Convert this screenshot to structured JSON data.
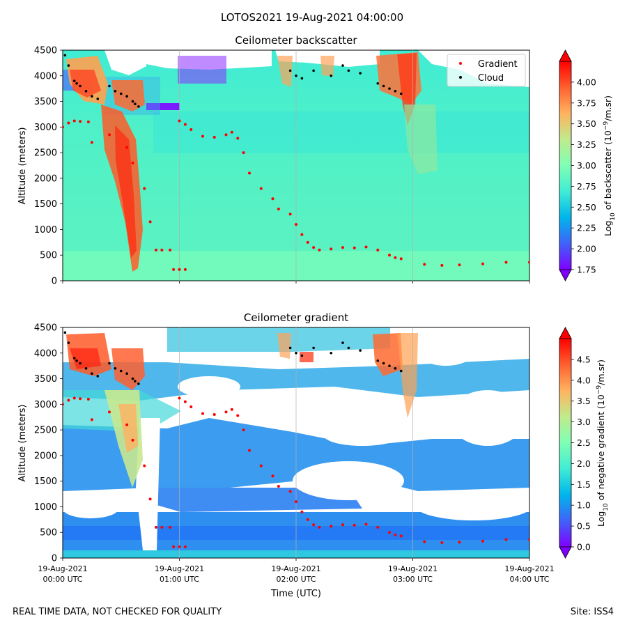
{
  "figure": {
    "suptitle": "LOTOS2021 19-Aug-2021 04:00:00",
    "footer_left": "REAL TIME DATA, NOT CHECKED FOR QUALITY",
    "footer_right": "Site: ISS4"
  },
  "colormap": [
    "#8000ff",
    "#4062fa",
    "#00b5eb",
    "#40ecd4",
    "#80ffb4",
    "#c0eb8d",
    "#ffb360",
    "#ff6030",
    "#ff0000"
  ],
  "chart_data": [
    {
      "type": "heatmap",
      "title": "Ceilometer backscatter",
      "ylabel": "Altitude (meters)",
      "xlim": [
        "19-Aug-2021 00:00 UTC",
        "19-Aug-2021 04:00 UTC"
      ],
      "ylim": [
        0,
        4500
      ],
      "y_ticks": [
        "0",
        "500",
        "1000",
        "1500",
        "2000",
        "2500",
        "3000",
        "3500",
        "4000",
        "4500"
      ],
      "grid": "vertical lines at each hour",
      "legend": {
        "placement": "top-right",
        "entries": [
          {
            "label": "Gradient",
            "color": "#ff0000"
          },
          {
            "label": "Cloud",
            "color": "#000000"
          }
        ]
      },
      "colorbar": {
        "label": "Log10 of backscatter (10^-9/m.sr)",
        "range": [
          1.75,
          4.25
        ],
        "extend": "both",
        "ticks": [
          "1.75",
          "2.00",
          "2.25",
          "2.50",
          "2.75",
          "3.00",
          "3.25",
          "3.50",
          "3.75",
          "4.00"
        ]
      },
      "gradient_points": [
        [
          0,
          3000
        ],
        [
          0.05,
          3080
        ],
        [
          0.1,
          3120
        ],
        [
          0.15,
          3110
        ],
        [
          0.22,
          3100
        ],
        [
          0.25,
          2700
        ],
        [
          0.4,
          2850
        ],
        [
          0.55,
          2600
        ],
        [
          0.6,
          2300
        ],
        [
          0.7,
          1800
        ],
        [
          0.75,
          1150
        ],
        [
          0.8,
          600
        ],
        [
          0.85,
          600
        ],
        [
          0.92,
          600
        ],
        [
          0.95,
          220
        ],
        [
          1.0,
          220
        ],
        [
          1.05,
          220
        ],
        [
          1.0,
          3120
        ],
        [
          1.05,
          3050
        ],
        [
          1.1,
          2950
        ],
        [
          1.2,
          2820
        ],
        [
          1.3,
          2800
        ],
        [
          1.4,
          2850
        ],
        [
          1.45,
          2900
        ],
        [
          1.5,
          2780
        ],
        [
          1.55,
          2500
        ],
        [
          1.6,
          2100
        ],
        [
          1.7,
          1800
        ],
        [
          1.8,
          1600
        ],
        [
          1.85,
          1400
        ],
        [
          1.95,
          1300
        ],
        [
          2.0,
          1100
        ],
        [
          2.05,
          900
        ],
        [
          2.1,
          750
        ],
        [
          2.15,
          650
        ],
        [
          2.2,
          600
        ],
        [
          2.3,
          620
        ],
        [
          2.4,
          650
        ],
        [
          2.5,
          640
        ],
        [
          2.6,
          660
        ],
        [
          2.7,
          600
        ],
        [
          2.8,
          500
        ],
        [
          2.85,
          450
        ],
        [
          2.9,
          430
        ],
        [
          3.1,
          320
        ],
        [
          3.25,
          300
        ],
        [
          3.4,
          310
        ],
        [
          3.6,
          330
        ],
        [
          3.8,
          360
        ],
        [
          4.0,
          360
        ]
      ],
      "cloud_points": [
        [
          0.02,
          4400
        ],
        [
          0.05,
          4200
        ],
        [
          0.1,
          3900
        ],
        [
          0.12,
          3850
        ],
        [
          0.15,
          3800
        ],
        [
          0.2,
          3700
        ],
        [
          0.25,
          3600
        ],
        [
          0.3,
          3550
        ],
        [
          0.4,
          3800
        ],
        [
          0.45,
          3700
        ],
        [
          0.5,
          3650
        ],
        [
          0.55,
          3600
        ],
        [
          0.6,
          3500
        ],
        [
          0.62,
          3450
        ],
        [
          0.65,
          3400
        ],
        [
          1.95,
          4100
        ],
        [
          2.0,
          4000
        ],
        [
          2.05,
          3950
        ],
        [
          2.15,
          4100
        ],
        [
          2.3,
          4000
        ],
        [
          2.4,
          4200
        ],
        [
          2.45,
          4100
        ],
        [
          2.55,
          4050
        ],
        [
          2.7,
          3850
        ],
        [
          2.75,
          3800
        ],
        [
          2.8,
          3750
        ],
        [
          2.85,
          3700
        ],
        [
          2.9,
          3650
        ]
      ]
    },
    {
      "type": "heatmap",
      "title": "Ceilometer gradient",
      "xlabel": "Time (UTC)",
      "ylabel": "Altitude (meters)",
      "xlim": [
        "19-Aug-2021 00:00 UTC",
        "19-Aug-2021 04:00 UTC"
      ],
      "ylim": [
        0,
        4500
      ],
      "y_ticks": [
        "0",
        "500",
        "1000",
        "1500",
        "2000",
        "2500",
        "3000",
        "3500",
        "4000",
        "4500"
      ],
      "x_ticks": [
        {
          "date": "19-Aug-2021",
          "time": "00:00 UTC"
        },
        {
          "date": "19-Aug-2021",
          "time": "01:00 UTC"
        },
        {
          "date": "19-Aug-2021",
          "time": "02:00 UTC"
        },
        {
          "date": "19-Aug-2021",
          "time": "03:00 UTC"
        },
        {
          "date": "19-Aug-2021",
          "time": "04:00 UTC"
        }
      ],
      "grid": "vertical lines at each hour",
      "colorbar": {
        "label": "Log10 of negative gradient (10^-9/m.sr)",
        "range": [
          0.0,
          5.0
        ],
        "extend": "both",
        "ticks": [
          "0.0",
          "0.5",
          "1.0",
          "1.5",
          "2.0",
          "2.5",
          "3.0",
          "3.5",
          "4.0",
          "4.5"
        ]
      },
      "gradient_points": [
        [
          0,
          3000
        ],
        [
          0.05,
          3080
        ],
        [
          0.1,
          3120
        ],
        [
          0.15,
          3110
        ],
        [
          0.22,
          3100
        ],
        [
          0.25,
          2700
        ],
        [
          0.4,
          2850
        ],
        [
          0.55,
          2600
        ],
        [
          0.6,
          2300
        ],
        [
          0.7,
          1800
        ],
        [
          0.75,
          1150
        ],
        [
          0.8,
          600
        ],
        [
          0.85,
          600
        ],
        [
          0.92,
          600
        ],
        [
          0.95,
          220
        ],
        [
          1.0,
          220
        ],
        [
          1.05,
          220
        ],
        [
          1.0,
          3120
        ],
        [
          1.05,
          3050
        ],
        [
          1.1,
          2950
        ],
        [
          1.2,
          2820
        ],
        [
          1.3,
          2800
        ],
        [
          1.4,
          2850
        ],
        [
          1.45,
          2900
        ],
        [
          1.5,
          2780
        ],
        [
          1.55,
          2500
        ],
        [
          1.6,
          2100
        ],
        [
          1.7,
          1800
        ],
        [
          1.8,
          1600
        ],
        [
          1.85,
          1400
        ],
        [
          1.95,
          1300
        ],
        [
          2.0,
          1100
        ],
        [
          2.05,
          900
        ],
        [
          2.1,
          750
        ],
        [
          2.15,
          650
        ],
        [
          2.2,
          600
        ],
        [
          2.3,
          620
        ],
        [
          2.4,
          650
        ],
        [
          2.5,
          640
        ],
        [
          2.6,
          660
        ],
        [
          2.7,
          600
        ],
        [
          2.8,
          500
        ],
        [
          2.85,
          450
        ],
        [
          2.9,
          430
        ],
        [
          3.1,
          320
        ],
        [
          3.25,
          300
        ],
        [
          3.4,
          310
        ],
        [
          3.6,
          330
        ],
        [
          3.8,
          360
        ],
        [
          4.0,
          360
        ]
      ],
      "cloud_points": [
        [
          0.02,
          4400
        ],
        [
          0.05,
          4200
        ],
        [
          0.1,
          3900
        ],
        [
          0.12,
          3850
        ],
        [
          0.15,
          3800
        ],
        [
          0.2,
          3700
        ],
        [
          0.25,
          3600
        ],
        [
          0.3,
          3550
        ],
        [
          0.4,
          3800
        ],
        [
          0.45,
          3700
        ],
        [
          0.5,
          3650
        ],
        [
          0.55,
          3600
        ],
        [
          0.6,
          3500
        ],
        [
          0.62,
          3450
        ],
        [
          0.65,
          3400
        ],
        [
          1.95,
          4100
        ],
        [
          2.0,
          4000
        ],
        [
          2.05,
          3950
        ],
        [
          2.15,
          4100
        ],
        [
          2.3,
          4000
        ],
        [
          2.4,
          4200
        ],
        [
          2.45,
          4100
        ],
        [
          2.55,
          4050
        ],
        [
          2.7,
          3850
        ],
        [
          2.75,
          3800
        ],
        [
          2.8,
          3750
        ],
        [
          2.85,
          3700
        ],
        [
          2.9,
          3650
        ]
      ]
    }
  ]
}
